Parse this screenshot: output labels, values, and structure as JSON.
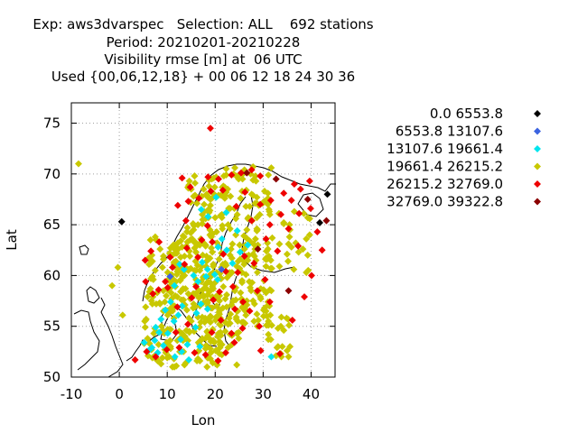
{
  "chart_data": {
    "type": "scatter",
    "title_lines": [
      "Exp: aws3dvarspec   Selection: ALL    692 stations",
      "Period: 20210201-20210228",
      "Visibility rmse [m] at  06 UTC",
      "Used {00,06,12,18} + 00 06 12 18 24 30 36"
    ],
    "xlabel": "Lon",
    "ylabel": "Lat",
    "xlim": [
      -10,
      45
    ],
    "ylim": [
      50,
      77
    ],
    "xticks": [
      -10,
      0,
      10,
      20,
      30,
      40
    ],
    "yticks": [
      50,
      55,
      60,
      65,
      70,
      75
    ],
    "grid": true,
    "legend_position": "right",
    "series": [
      {
        "name": "0.0 6553.8",
        "color": "#000000",
        "points": [
          [
            0.5,
            65.3
          ],
          [
            41.8,
            65.2
          ],
          [
            43.4,
            68.0
          ]
        ]
      },
      {
        "name": "6553.8 13107.6",
        "color": "#3b63e0",
        "points": [
          [
            10.6,
            59.9
          ],
          [
            21.3,
            60.6
          ]
        ]
      },
      {
        "name": "13107.6 19661.4",
        "color": "#00e5ee",
        "points": [
          [
            5.2,
            53.4
          ],
          [
            6.8,
            52.9
          ],
          [
            7.4,
            53.6
          ],
          [
            8.3,
            54.4
          ],
          [
            8.0,
            52.4
          ],
          [
            9.2,
            53.1
          ],
          [
            10.1,
            54.3
          ],
          [
            11.4,
            55.5
          ],
          [
            12.3,
            56.1
          ],
          [
            9.6,
            56.6
          ],
          [
            10.7,
            57.4
          ],
          [
            8.7,
            55.7
          ],
          [
            11.5,
            59.0
          ],
          [
            12.6,
            61.1
          ],
          [
            13.5,
            60.6
          ],
          [
            15.5,
            60.0
          ],
          [
            16.4,
            59.4
          ],
          [
            17.0,
            57.2
          ],
          [
            18.1,
            59.9
          ],
          [
            18.4,
            60.6
          ],
          [
            17.3,
            61.3
          ],
          [
            19.9,
            60.1
          ],
          [
            20.5,
            59.6
          ],
          [
            20.6,
            62.8
          ],
          [
            21.4,
            63.6
          ],
          [
            22.4,
            62.5
          ],
          [
            23.6,
            61.2
          ],
          [
            25.2,
            62.3
          ],
          [
            24.6,
            64.4
          ],
          [
            26.8,
            63.0
          ],
          [
            18.5,
            65.8
          ],
          [
            17.1,
            66.5
          ],
          [
            20.2,
            67.7
          ],
          [
            22.3,
            66.2
          ],
          [
            18.4,
            56.7
          ],
          [
            16.1,
            56.3
          ],
          [
            12.8,
            53.7
          ],
          [
            14.2,
            53.2
          ],
          [
            13.0,
            52.5
          ],
          [
            11.6,
            52.0
          ],
          [
            14.5,
            51.7
          ],
          [
            15.9,
            54.9
          ],
          [
            16.8,
            53.0
          ],
          [
            13.1,
            57.0
          ],
          [
            6.1,
            52.6
          ],
          [
            7.6,
            54.9
          ],
          [
            31.7,
            52.0
          ]
        ]
      },
      {
        "name": "19661.4 26215.2",
        "color": "#c8c800",
        "points": []
      },
      {
        "name": "26215.2 32769.0",
        "color": "#ee0000",
        "points": [
          [
            19.0,
            74.5
          ],
          [
            3.3,
            51.7
          ],
          [
            5.7,
            52.5
          ],
          [
            12.5,
            52.9
          ],
          [
            12.1,
            56.9
          ],
          [
            10.1,
            58.8
          ],
          [
            14.3,
            55.2
          ],
          [
            15.1,
            57.8
          ],
          [
            16.0,
            58.9
          ],
          [
            16.4,
            61.8
          ],
          [
            14.1,
            62.7
          ],
          [
            17.2,
            63.5
          ],
          [
            19.4,
            63.3
          ],
          [
            18.4,
            64.9
          ],
          [
            13.9,
            65.4
          ],
          [
            12.2,
            66.9
          ],
          [
            14.4,
            67.3
          ],
          [
            16.6,
            67.6
          ],
          [
            14.8,
            68.7
          ],
          [
            13.1,
            69.6
          ],
          [
            18.5,
            69.7
          ],
          [
            20.7,
            69.5
          ],
          [
            23.4,
            69.9
          ],
          [
            25.4,
            70.1
          ],
          [
            27.6,
            70.4
          ],
          [
            29.4,
            69.8
          ],
          [
            26.2,
            68.2
          ],
          [
            24.4,
            66.8
          ],
          [
            27.6,
            65.4
          ],
          [
            29.4,
            67.0
          ],
          [
            31.6,
            67.4
          ],
          [
            34.3,
            68.1
          ],
          [
            36.5,
            69.0
          ],
          [
            37.5,
            66.1
          ],
          [
            41.3,
            64.3
          ],
          [
            33.0,
            62.4
          ],
          [
            28.1,
            61.2
          ],
          [
            24.7,
            60.3
          ],
          [
            22.2,
            60.4
          ],
          [
            23.7,
            58.9
          ],
          [
            25.8,
            57.4
          ],
          [
            24.1,
            56.7
          ],
          [
            23.4,
            54.3
          ],
          [
            21.2,
            55.6
          ],
          [
            19.3,
            54.4
          ],
          [
            18.0,
            52.2
          ],
          [
            20.6,
            51.6
          ],
          [
            22.2,
            52.4
          ],
          [
            24.0,
            53.4
          ],
          [
            25.7,
            54.8
          ],
          [
            27.2,
            56.5
          ],
          [
            28.8,
            58.5
          ],
          [
            30.4,
            59.6
          ],
          [
            31.4,
            57.4
          ],
          [
            29.2,
            55.0
          ],
          [
            29.5,
            52.6
          ],
          [
            33.5,
            52.3
          ],
          [
            36.1,
            55.6
          ],
          [
            38.6,
            57.9
          ],
          [
            40.1,
            60.0
          ],
          [
            37.3,
            62.9
          ],
          [
            35.3,
            64.6
          ],
          [
            39.9,
            66.6
          ],
          [
            42.3,
            62.5
          ],
          [
            7.6,
            52.0
          ],
          [
            9.9,
            52.7
          ],
          [
            11.8,
            54.4
          ],
          [
            15.7,
            52.4
          ],
          [
            19.6,
            57.6
          ],
          [
            20.9,
            58.4
          ],
          [
            21.7,
            62.1
          ],
          [
            26.1,
            61.9
          ],
          [
            30.6,
            63.6
          ],
          [
            31.4,
            65.0
          ],
          [
            33.7,
            66.0
          ],
          [
            35.9,
            67.4
          ],
          [
            37.8,
            68.5
          ],
          [
            39.7,
            69.3
          ],
          [
            19.1,
            68.3
          ],
          [
            21.6,
            68.4
          ],
          [
            13.6,
            61.1
          ],
          [
            10.6,
            61.8
          ],
          [
            6.6,
            62.4
          ],
          [
            8.3,
            63.3
          ],
          [
            5.4,
            61.5
          ],
          [
            5.5,
            59.4
          ],
          [
            7.0,
            58.2
          ],
          [
            8.2,
            58.6
          ],
          [
            9.6,
            59.4
          ],
          [
            11.1,
            60.8
          ]
        ]
      },
      {
        "name": "32769.0 39322.8",
        "color": "#8b0000",
        "points": [
          [
            26.6,
            70.1
          ],
          [
            32.7,
            69.5
          ],
          [
            39.3,
            67.5
          ],
          [
            43.2,
            65.4
          ],
          [
            35.3,
            58.5
          ],
          [
            28.9,
            62.6
          ]
        ]
      }
    ]
  }
}
